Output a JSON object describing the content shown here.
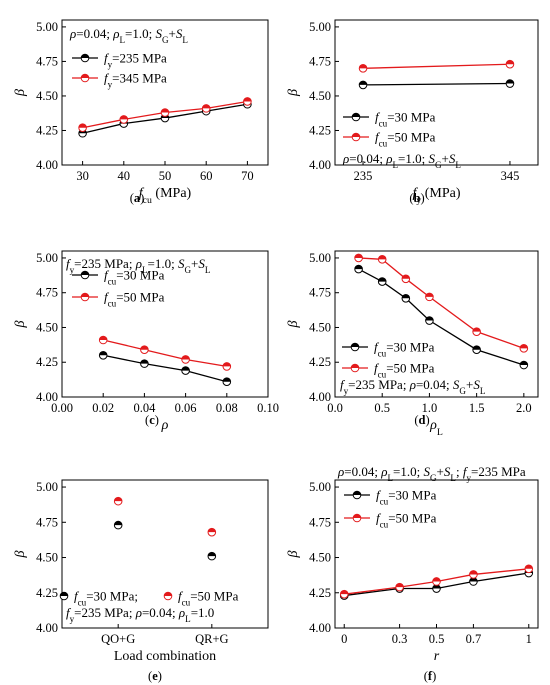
{
  "figure": {
    "type": "multi-panel line/scatter figure"
  },
  "chart_data": [
    {
      "id": "a",
      "caption": "(a)",
      "type": "line",
      "x": [
        30,
        40,
        50,
        60,
        70
      ],
      "xticks": [
        "30",
        "40",
        "50",
        "60",
        "70"
      ],
      "yticks": [
        "4.00",
        "4.25",
        "4.50",
        "4.75",
        "5.00"
      ],
      "ylim": [
        4.0,
        5.05
      ],
      "xlim": [
        25,
        75
      ],
      "xlabel": {
        "main": "f",
        "sub": "cu",
        "rest": " (MPa)"
      },
      "ylabel": "β",
      "annotation": "ρ=0.04; ρL=1.0; SG+SL",
      "series": [
        {
          "name": "fy=235 MPa",
          "color": "#000000",
          "values": [
            4.23,
            4.3,
            4.34,
            4.39,
            4.44
          ]
        },
        {
          "name": "fy=345 MPa",
          "color": "#e31a1c",
          "values": [
            4.27,
            4.33,
            4.38,
            4.41,
            4.46
          ]
        }
      ]
    },
    {
      "id": "b",
      "caption": "(b)",
      "type": "line",
      "x": [
        235,
        345
      ],
      "xticks": [
        "235",
        "345"
      ],
      "yticks": [
        "4.00",
        "4.25",
        "4.50",
        "4.75",
        "5.00"
      ],
      "ylim": [
        4.0,
        5.05
      ],
      "xlim": [
        214,
        366
      ],
      "xlabel": {
        "main": "f",
        "sub": "y",
        "rest": " (MPa)"
      },
      "ylabel": "β",
      "annotation": "ρ=0.04; ρL=1.0; SG+SL",
      "series": [
        {
          "name": "fcu=30 MPa",
          "color": "#000000",
          "values": [
            4.58,
            4.59
          ]
        },
        {
          "name": "fcu=50 MPa",
          "color": "#e31a1c",
          "values": [
            4.7,
            4.73
          ]
        }
      ]
    },
    {
      "id": "c",
      "caption": "(c)",
      "type": "line",
      "x": [
        0.02,
        0.04,
        0.06,
        0.08
      ],
      "xticks": [
        "0.00",
        "0.02",
        "0.04",
        "0.06",
        "0.08",
        "0.10"
      ],
      "yticks": [
        "4.00",
        "4.25",
        "4.50",
        "4.75",
        "5.00"
      ],
      "ylim": [
        4.0,
        5.05
      ],
      "xlim": [
        0.0,
        0.1
      ],
      "xlabel": {
        "main": "ρ",
        "sub": "",
        "rest": ""
      },
      "ylabel": "β",
      "annotation": "fy=235 MPa; ρL=1.0; SG+SL",
      "series": [
        {
          "name": "fcu=30 MPa",
          "color": "#000000",
          "values": [
            4.3,
            4.24,
            4.19,
            4.11
          ]
        },
        {
          "name": "fcu=50 MPa",
          "color": "#e31a1c",
          "values": [
            4.41,
            4.34,
            4.27,
            4.22
          ]
        }
      ]
    },
    {
      "id": "d",
      "caption": "(d)",
      "type": "line",
      "x": [
        0.25,
        0.5,
        0.75,
        1.0,
        1.5,
        2.0
      ],
      "xticks": [
        "0.0",
        "0.5",
        "1.0",
        "1.5",
        "2.0"
      ],
      "yticks": [
        "4.00",
        "4.25",
        "4.50",
        "4.75",
        "5.00"
      ],
      "ylim": [
        4.0,
        5.05
      ],
      "xlim": [
        0.0,
        2.15
      ],
      "xlabel": {
        "main": "ρ",
        "sub": "L",
        "rest": ""
      },
      "ylabel": "β",
      "annotation": "fy=235 MPa; ρ=0.04; SG+SL",
      "series": [
        {
          "name": "fcu=30 MPa",
          "color": "#000000",
          "values": [
            4.92,
            4.83,
            4.71,
            4.55,
            4.34,
            4.23
          ]
        },
        {
          "name": "fcu=50 MPa",
          "color": "#e31a1c",
          "values": [
            5.0,
            4.99,
            4.85,
            4.72,
            4.47,
            4.35
          ]
        }
      ]
    },
    {
      "id": "e",
      "caption": "(e)",
      "type": "scatter",
      "categories": [
        "QO+G",
        "QR+G"
      ],
      "xticks": [
        "QO+G",
        "QR+G"
      ],
      "yticks": [
        "4.00",
        "4.25",
        "4.50",
        "4.75",
        "5.00"
      ],
      "ylim": [
        4.0,
        5.05
      ],
      "xlim": [
        -0.6,
        1.6
      ],
      "xlabel": {
        "main": "Load combination",
        "sub": "",
        "rest": ""
      },
      "ylabel": "β",
      "annotation": "fy=235 MPa; ρ=0.04; ρL=1.0",
      "series": [
        {
          "name": "fcu=30 MPa;",
          "color": "#000000",
          "values": [
            4.73,
            4.51
          ]
        },
        {
          "name": "fcu=50 MPa",
          "color": "#e31a1c",
          "values": [
            4.9,
            4.68
          ]
        }
      ]
    },
    {
      "id": "f",
      "caption": "(f)",
      "type": "line",
      "x": [
        0,
        0.3,
        0.5,
        0.7,
        1.0
      ],
      "xticks": [
        "0",
        "0.3",
        "0.5",
        "0.7",
        "1"
      ],
      "yticks": [
        "4.00",
        "4.25",
        "4.50",
        "4.75",
        "5.00"
      ],
      "ylim": [
        4.0,
        5.05
      ],
      "xlim": [
        -0.05,
        1.05
      ],
      "xlabel": {
        "main": "r",
        "sub": "",
        "rest": ""
      },
      "ylabel": "β",
      "annotation": "ρ=0.04; ρL=1.0; SG+SL; fy=235 MPa",
      "series": [
        {
          "name": "fcu=30 MPa",
          "color": "#000000",
          "values": [
            4.23,
            4.28,
            4.28,
            4.33,
            4.39
          ]
        },
        {
          "name": "fcu=50 MPa",
          "color": "#e31a1c",
          "values": [
            4.24,
            4.29,
            4.33,
            4.38,
            4.42
          ]
        }
      ]
    }
  ]
}
